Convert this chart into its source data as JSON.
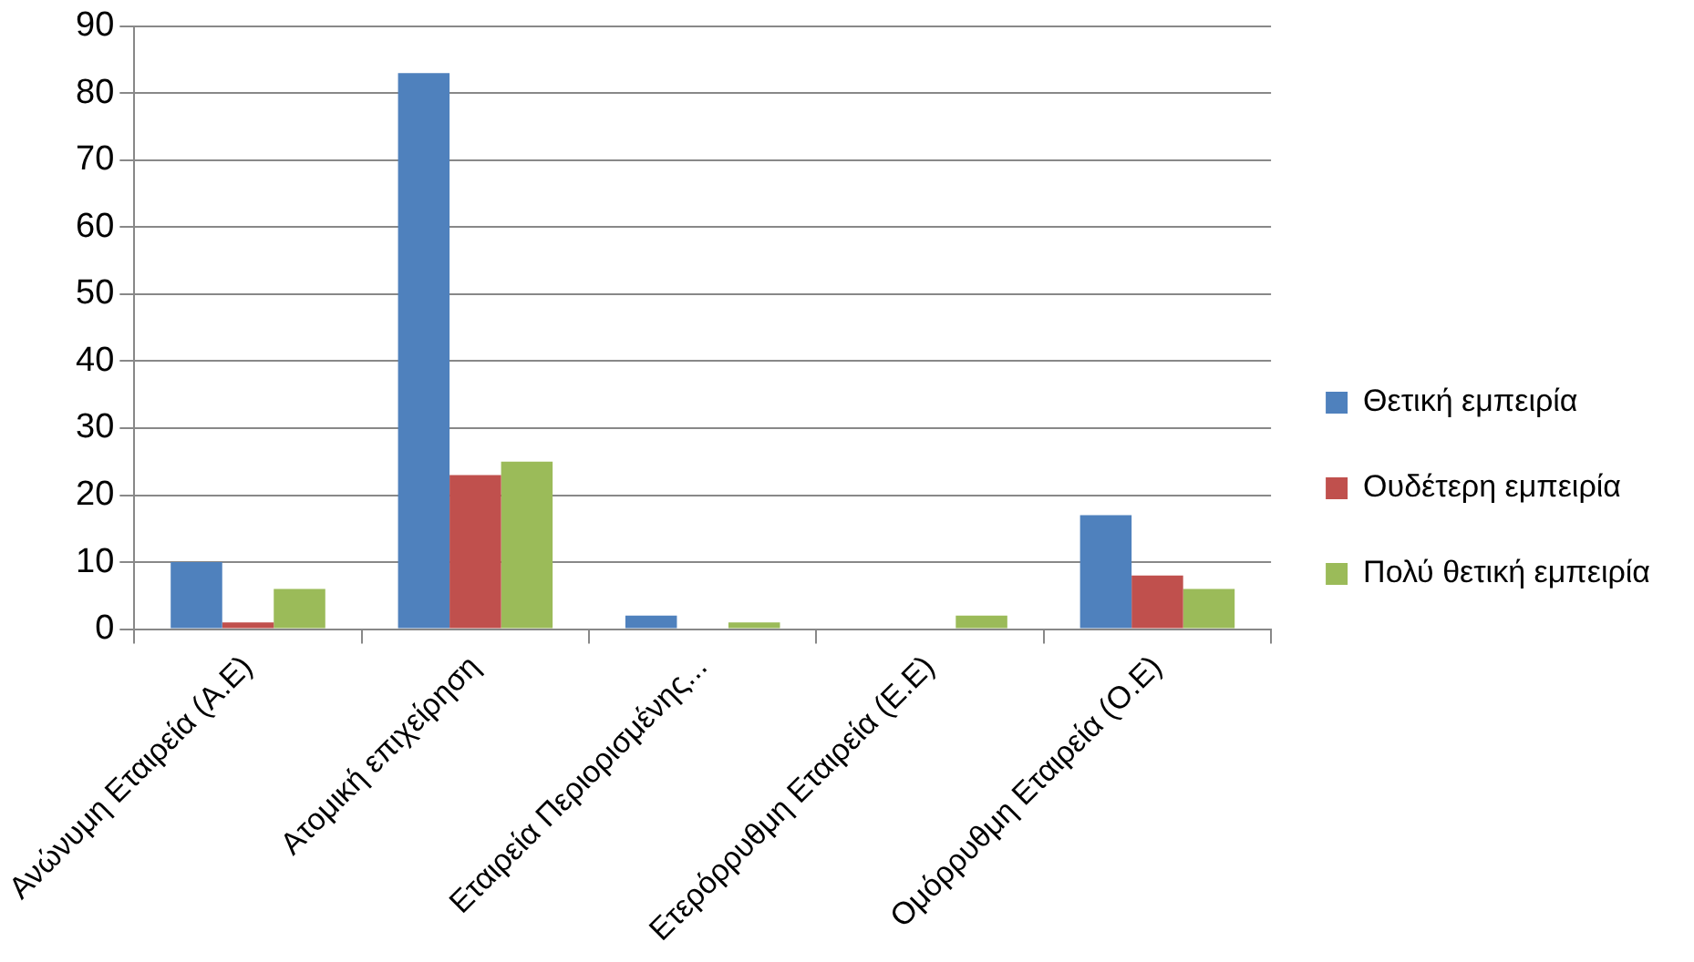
{
  "chart_data": {
    "type": "bar",
    "categories": [
      "Ανώνυμη Εταιρεία (Α.Ε)",
      "Ατομική επιχείρηση",
      "Εταιρεία Περιορισμένης...",
      "Ετερόρρυθμη Εταιρεία (Ε.Ε)",
      "Ομόρρυθμη Εταιρεία (Ο.Ε)"
    ],
    "series": [
      {
        "name": "Θετική εμπειρία",
        "color": "#4f81bd",
        "values": [
          10,
          83,
          2,
          0,
          17
        ]
      },
      {
        "name": "Ουδέτερη εμπειρία",
        "color": "#c0504d",
        "values": [
          1,
          23,
          0,
          0,
          8
        ]
      },
      {
        "name": "Πολύ θετική εμπειρία",
        "color": "#9bbb59",
        "values": [
          6,
          25,
          1,
          2,
          6
        ]
      }
    ],
    "ylim": [
      0,
      90
    ],
    "yticks": [
      0,
      10,
      20,
      30,
      40,
      50,
      60,
      70,
      80,
      90
    ],
    "grid": "y",
    "legend": "right"
  }
}
